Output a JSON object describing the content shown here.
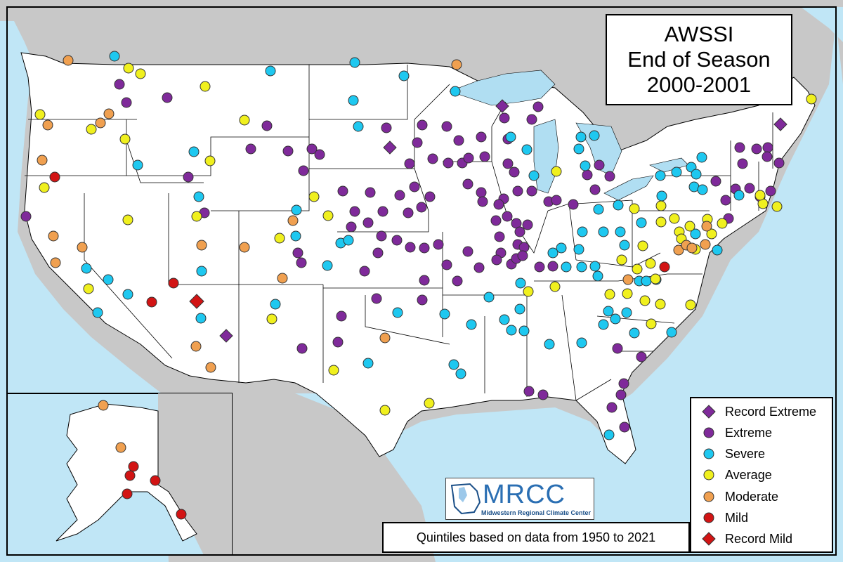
{
  "title": {
    "line1": "AWSSI",
    "line2": "End of Season",
    "line3": "2000-2001"
  },
  "footer": "Quintiles based on data from 1950 to 2021",
  "logo": {
    "name": "MRCC",
    "subtitle": "Midwestern Regional Climate Center"
  },
  "legend": [
    {
      "label": "Record Extreme",
      "shape": "diamond",
      "color": "#7f2a9a"
    },
    {
      "label": "Extreme",
      "shape": "circle",
      "color": "#7f2a9a"
    },
    {
      "label": "Severe",
      "shape": "circle",
      "color": "#1ec8f0"
    },
    {
      "label": "Average",
      "shape": "circle",
      "color": "#f0f01e"
    },
    {
      "label": "Moderate",
      "shape": "circle",
      "color": "#f0a050"
    },
    {
      "label": "Mild",
      "shape": "circle",
      "color": "#d21414"
    },
    {
      "label": "Record Mild",
      "shape": "diamond",
      "color": "#d21414"
    }
  ],
  "colors": {
    "ocean": "#c0e6f6",
    "land_foreign": "#c8c8c8",
    "land_us": "#ffffff",
    "lakes": "#b0def2"
  }
}
